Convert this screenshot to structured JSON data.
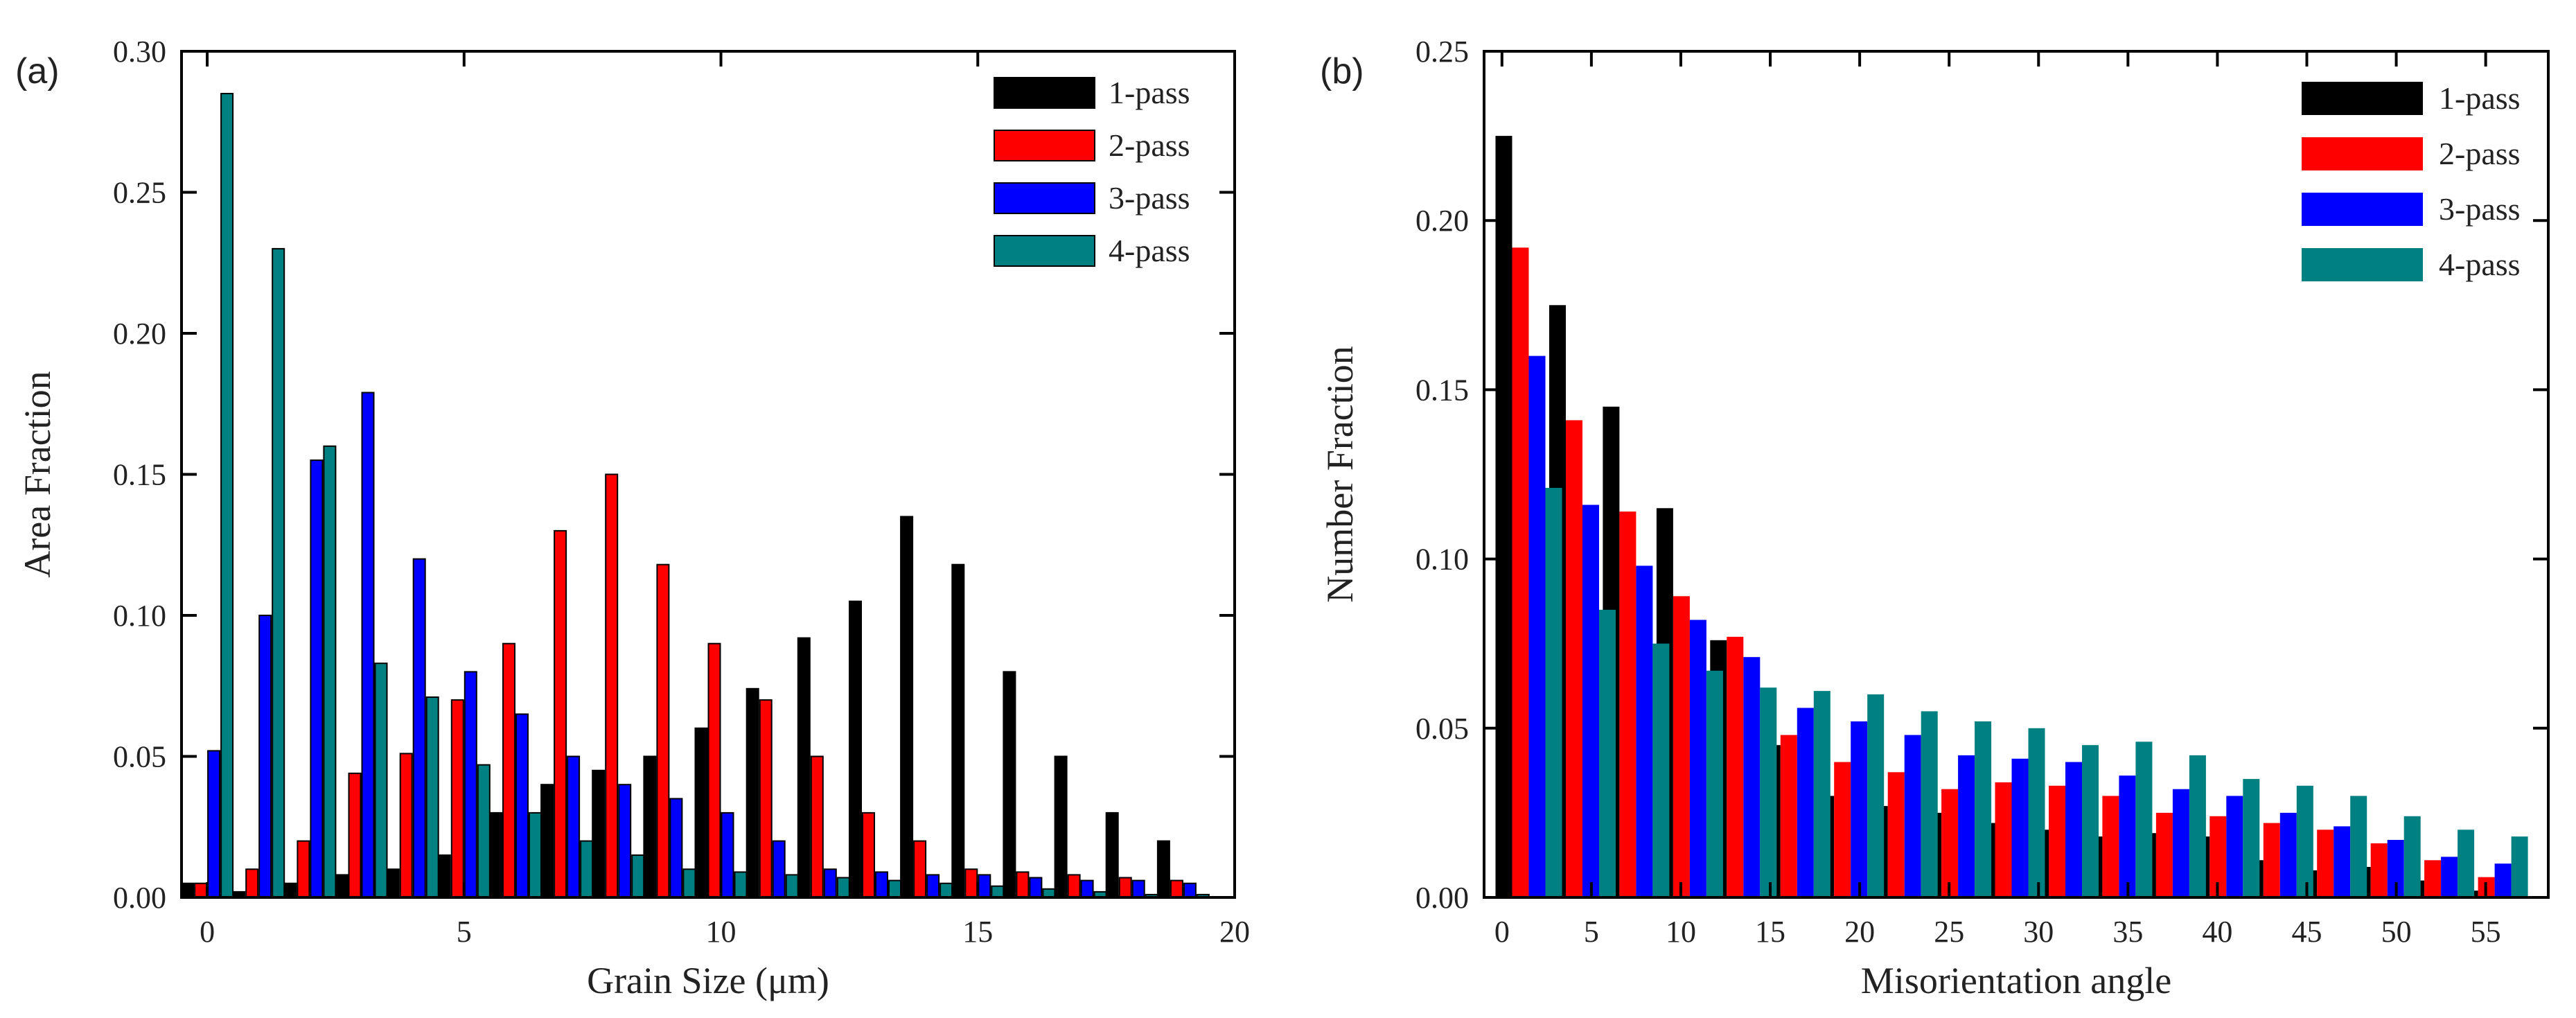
{
  "chart_data": [
    {
      "type": "bar",
      "panel_label": "(a)",
      "xlabel": "Grain Size (μm)",
      "ylabel": "Area Fraction",
      "xlim": [
        -0.5,
        20
      ],
      "ylim": [
        0,
        0.3
      ],
      "xticks": [
        0,
        5,
        10,
        15,
        20
      ],
      "yticks": [
        0.0,
        0.05,
        0.1,
        0.15,
        0.2,
        0.25,
        0.3
      ],
      "ytick_labels": [
        "0.00",
        "0.05",
        "0.10",
        "0.15",
        "0.20",
        "0.25",
        "0.30"
      ],
      "legend_position": "top-right",
      "x": [
        0,
        1,
        2,
        3,
        4,
        5,
        6,
        7,
        8,
        9,
        10,
        11,
        12,
        13,
        14,
        15,
        16,
        17,
        18,
        19
      ],
      "series": [
        {
          "name": "1-pass",
          "color": "#000000",
          "values": [
            0.005,
            0.002,
            0.005,
            0.008,
            0.01,
            0.015,
            0.03,
            0.04,
            0.045,
            0.05,
            0.06,
            0.074,
            0.092,
            0.105,
            0.135,
            0.118,
            0.08,
            0.05,
            0.03,
            0.02
          ]
        },
        {
          "name": "2-pass",
          "color": "#ff0000",
          "values": [
            0.005,
            0.01,
            0.02,
            0.044,
            0.051,
            0.07,
            0.09,
            0.13,
            0.15,
            0.118,
            0.09,
            0.07,
            0.05,
            0.03,
            0.02,
            0.01,
            0.009,
            0.008,
            0.007,
            0.006
          ]
        },
        {
          "name": "3-pass",
          "color": "#0000ff",
          "values": [
            0.052,
            0.1,
            0.155,
            0.179,
            0.12,
            0.08,
            0.065,
            0.05,
            0.04,
            0.035,
            0.03,
            0.02,
            0.01,
            0.009,
            0.008,
            0.008,
            0.007,
            0.006,
            0.006,
            0.005
          ]
        },
        {
          "name": "4-pass",
          "color": "#008080",
          "values": [
            0.285,
            0.23,
            0.16,
            0.083,
            0.071,
            0.047,
            0.03,
            0.02,
            0.015,
            0.01,
            0.009,
            0.008,
            0.007,
            0.006,
            0.005,
            0.004,
            0.003,
            0.002,
            0.001,
            0.001
          ]
        }
      ]
    },
    {
      "type": "bar",
      "panel_label": "(b)",
      "xlabel": "Misorientation angle",
      "ylabel": "Number Fraction",
      "xlim": [
        -1,
        58.5
      ],
      "ylim": [
        0,
        0.25
      ],
      "xticks": [
        0,
        5,
        10,
        15,
        20,
        25,
        30,
        35,
        40,
        45,
        50,
        55
      ],
      "yticks": [
        0.0,
        0.05,
        0.1,
        0.15,
        0.2,
        0.25
      ],
      "ytick_labels": [
        "0.00",
        "0.05",
        "0.10",
        "0.15",
        "0.20",
        "0.25"
      ],
      "legend_position": "top-right",
      "x": [
        1.5,
        4.5,
        7.5,
        10.5,
        13.5,
        16.5,
        19.5,
        22.5,
        25.5,
        28.5,
        31.5,
        34.5,
        37.5,
        40.5,
        43.5,
        46.5,
        49.5,
        52.5,
        55.5
      ],
      "series": [
        {
          "name": "1-pass",
          "color": "#000000",
          "values": [
            0.225,
            0.175,
            0.145,
            0.115,
            0.076,
            0.045,
            0.03,
            0.027,
            0.025,
            0.022,
            0.02,
            0.018,
            0.019,
            0.018,
            0.011,
            0.008,
            0.009,
            0.005,
            0.002
          ]
        },
        {
          "name": "2-pass",
          "color": "#ff0000",
          "values": [
            0.192,
            0.141,
            0.114,
            0.089,
            0.077,
            0.048,
            0.04,
            0.037,
            0.032,
            0.034,
            0.033,
            0.03,
            0.025,
            0.024,
            0.022,
            0.02,
            0.016,
            0.011,
            0.006
          ]
        },
        {
          "name": "3-pass",
          "color": "#0000ff",
          "values": [
            0.16,
            0.116,
            0.098,
            0.082,
            0.071,
            0.056,
            0.052,
            0.048,
            0.042,
            0.041,
            0.04,
            0.036,
            0.032,
            0.03,
            0.025,
            0.021,
            0.017,
            0.012,
            0.01
          ]
        },
        {
          "name": "4-pass",
          "color": "#008080",
          "values": [
            0.121,
            0.085,
            0.075,
            0.067,
            0.062,
            0.061,
            0.06,
            0.055,
            0.052,
            0.05,
            0.045,
            0.046,
            0.042,
            0.035,
            0.033,
            0.03,
            0.024,
            0.02,
            0.018
          ]
        }
      ]
    }
  ]
}
